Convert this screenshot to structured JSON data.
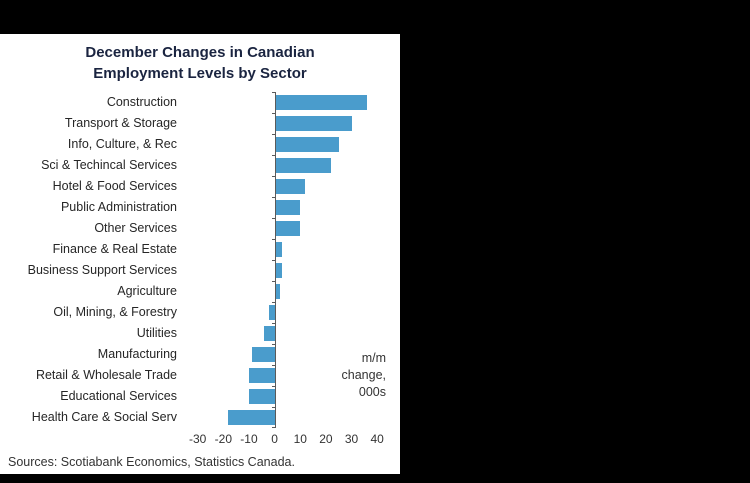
{
  "page": {
    "background_color": "#000000",
    "panel_color": "#ffffff"
  },
  "chart": {
    "title_line1": "December Changes in Canadian",
    "title_line2": "Employment Levels by Sector",
    "title_color": "#1a2440",
    "bar_color": "#4a9ccc",
    "annotation_lines": [
      "m/m",
      "change,",
      "000s"
    ],
    "source": "Sources: Scotiabank Economics, Statistics Canada."
  },
  "chart_data": {
    "type": "bar",
    "orientation": "horizontal",
    "title": "December Changes in Canadian Employment Levels by Sector",
    "xlabel": "m/m change, 000s",
    "categories": [
      "Construction",
      "Transport & Storage",
      "Info, Culture, & Rec",
      "Sci & Techincal Services",
      "Hotel & Food Services",
      "Public Administration",
      "Other Services",
      "Finance & Real Estate",
      "Business Support Services",
      "Agriculture",
      "Oil, Mining, & Forestry",
      "Utilities",
      "Manufacturing",
      "Retail & Wholesale Trade",
      "Educational Services",
      "Health Care & Social Serv"
    ],
    "values": [
      36,
      30,
      25,
      22,
      12,
      10,
      10,
      3,
      3,
      2,
      -2,
      -4,
      -9,
      -10,
      -10,
      -18
    ],
    "xticks": [
      -30,
      -20,
      -10,
      0,
      10,
      20,
      30,
      40
    ],
    "xlim": [
      -33,
      45
    ],
    "grid": false,
    "legend": "none",
    "annotation": "m/m change, 000s",
    "source": "Sources: Scotiabank Economics, Statistics Canada."
  }
}
